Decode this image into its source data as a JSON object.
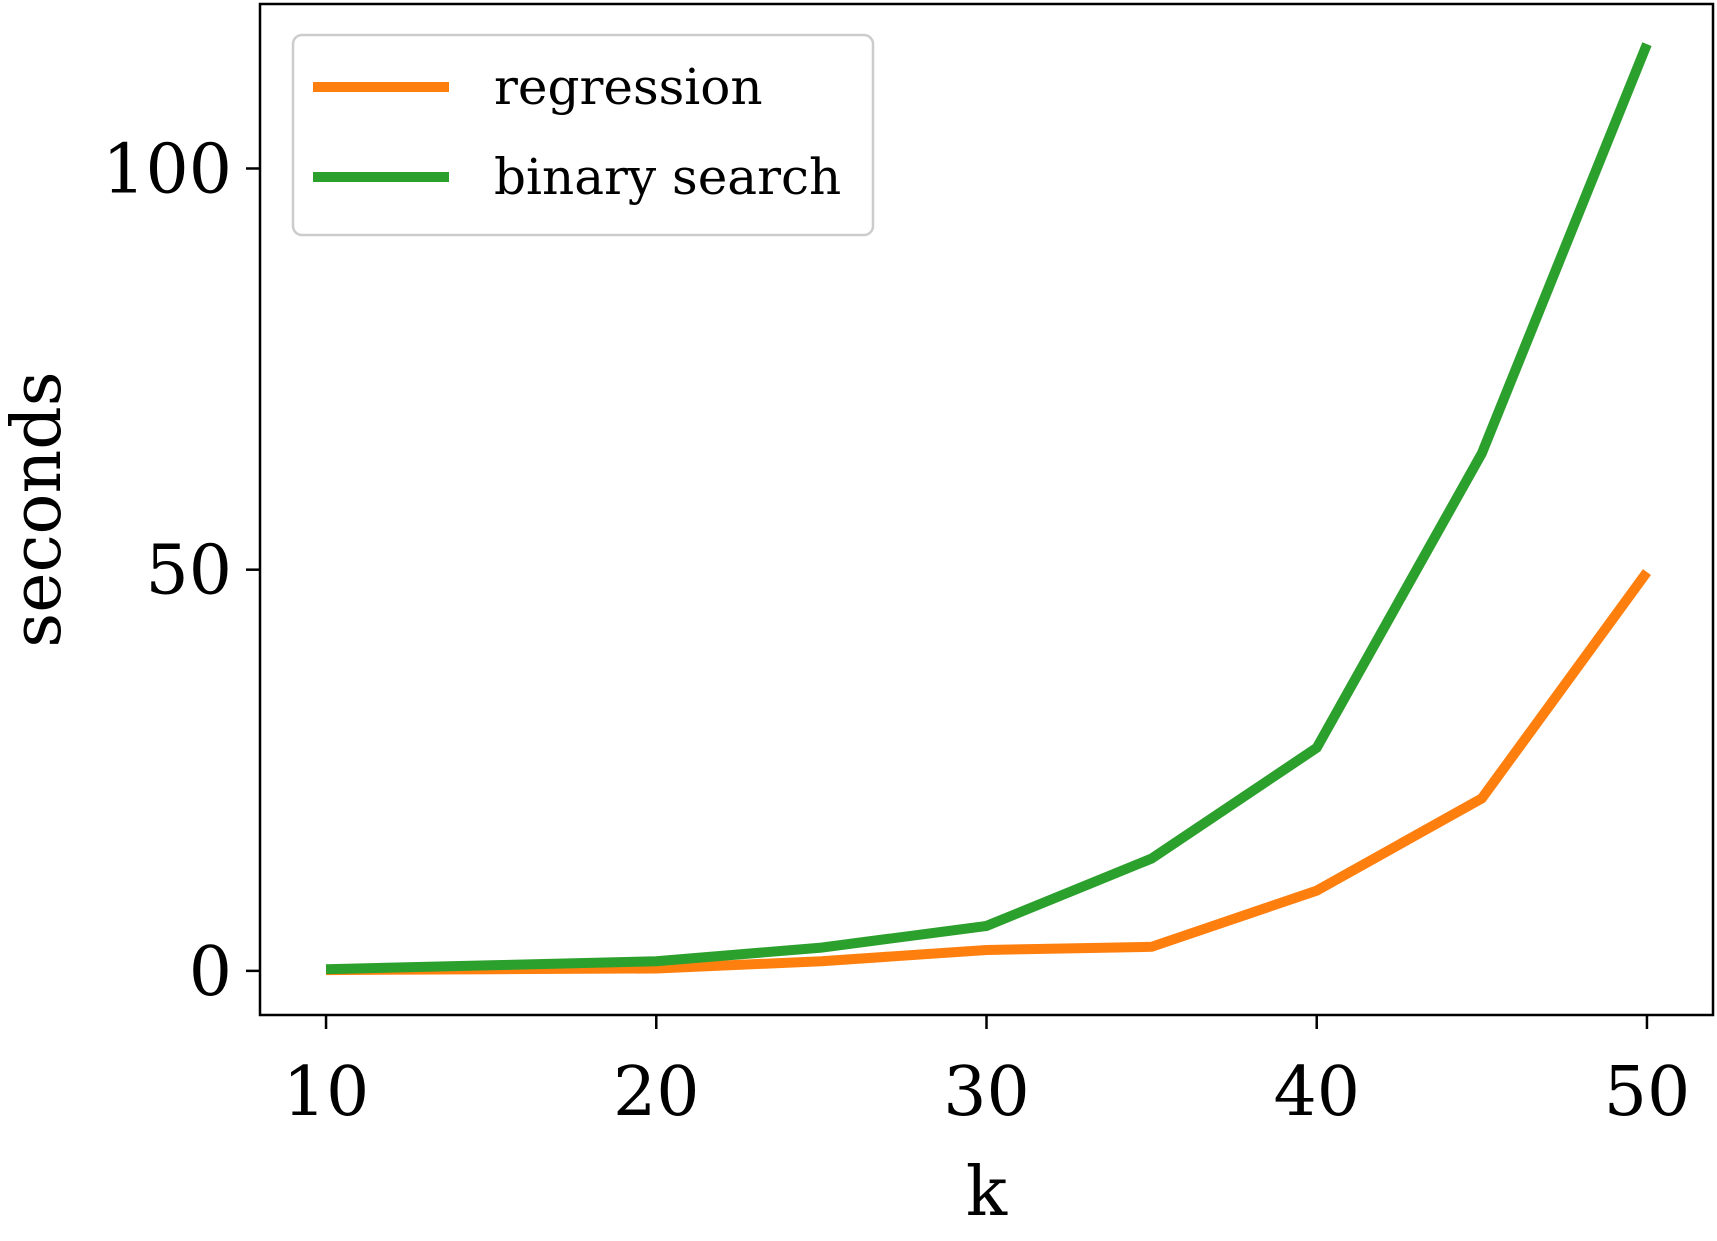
{
  "chart_data": {
    "type": "line",
    "title": "",
    "xlabel": "k",
    "ylabel": "seconds",
    "x": [
      10,
      15,
      20,
      25,
      30,
      35,
      40,
      45,
      50
    ],
    "xlim": [
      8,
      52
    ],
    "ylim": [
      -5.5,
      120.5
    ],
    "xticks": [
      10,
      20,
      30,
      40,
      50
    ],
    "xtick_labels": [
      "10",
      "20",
      "30",
      "40",
      "50"
    ],
    "yticks": [
      0,
      50,
      100
    ],
    "ytick_labels": [
      "0",
      "50",
      "100"
    ],
    "grid": false,
    "legend_position": "upper-left",
    "series": [
      {
        "name": "regression",
        "color": "#ff7f0e",
        "values": [
          0.1,
          0.2,
          0.3,
          1.2,
          2.6,
          3.0,
          10.0,
          21.5,
          49.7
        ]
      },
      {
        "name": "binary search",
        "color": "#2ca02c",
        "values": [
          0.2,
          0.7,
          1.2,
          2.9,
          5.6,
          14.0,
          27.8,
          64.5,
          115.5
        ]
      }
    ]
  }
}
